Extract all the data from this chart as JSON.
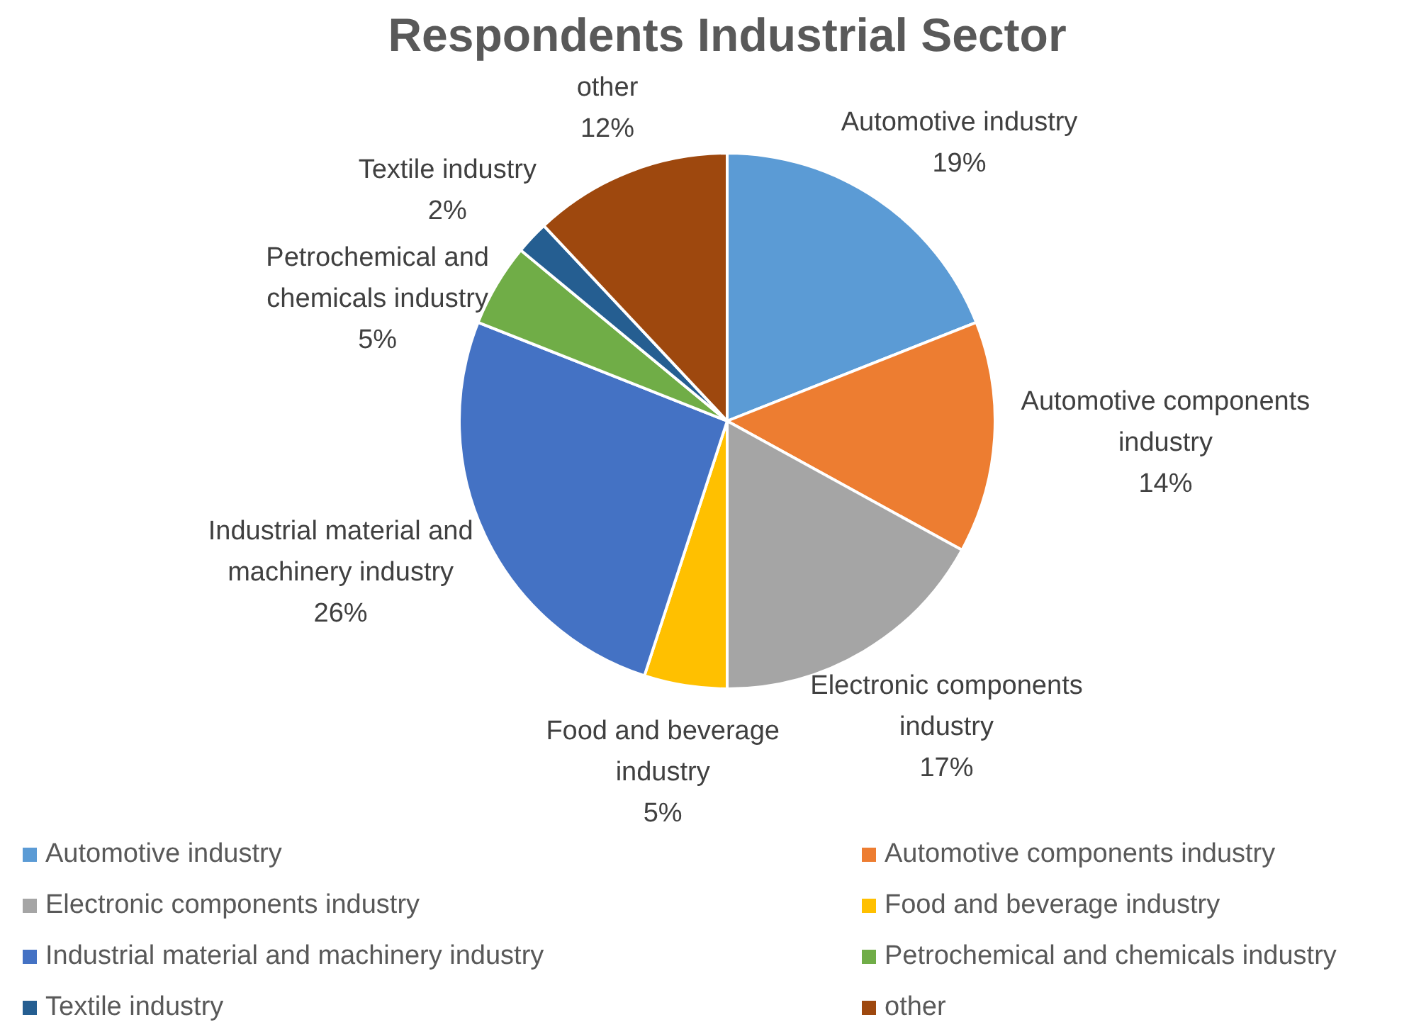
{
  "chart_data": {
    "type": "pie",
    "title": "Respondents Industrial Sector",
    "categories": [
      "Automotive industry",
      "Automotive components industry",
      "Electronic components industry",
      "Food and beverage industry",
      "Industrial material and machinery industry",
      "Petrochemical and chemicals industry",
      "Textile industry",
      "other"
    ],
    "values": [
      19,
      14,
      17,
      5,
      26,
      5,
      2,
      12
    ],
    "value_labels": [
      "19%",
      "14%",
      "17%",
      "5%",
      "26%",
      "5%",
      "2%",
      "12%"
    ],
    "colors": [
      "#5b9bd5",
      "#ed7d31",
      "#a5a5a5",
      "#ffc000",
      "#4472c4",
      "#70ad47",
      "#255e91",
      "#9e480e"
    ],
    "legend": "bottom"
  }
}
